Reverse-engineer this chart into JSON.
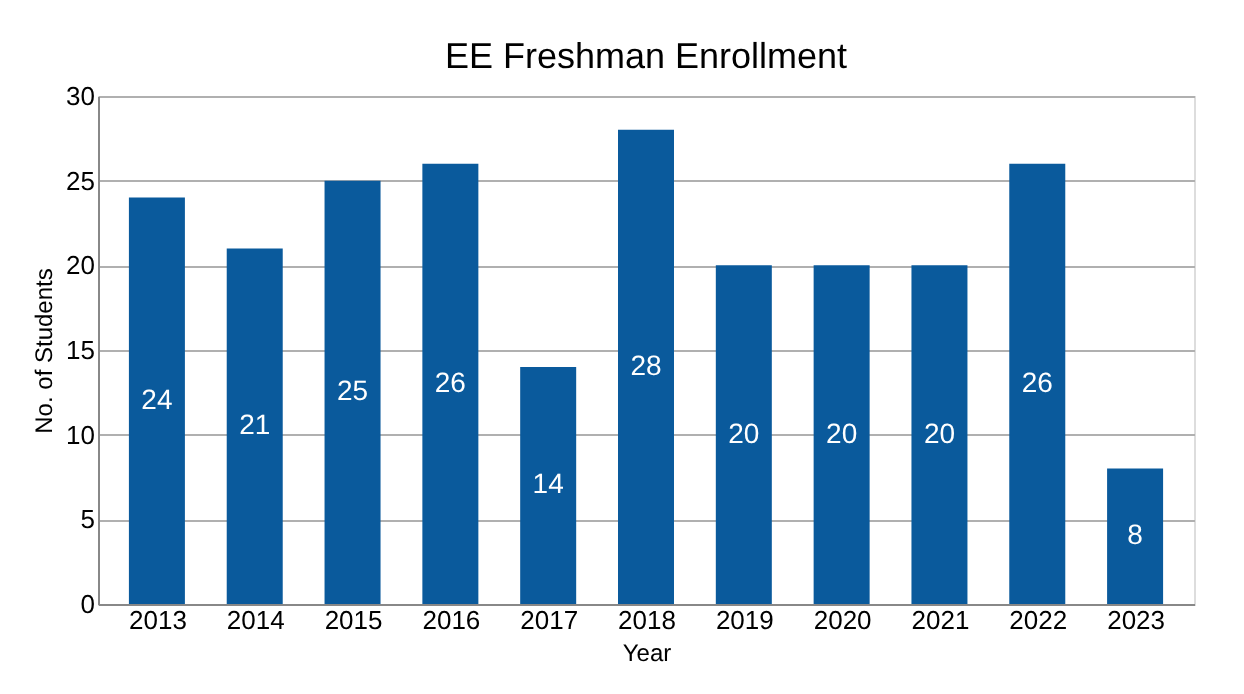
{
  "chart_data": {
    "type": "bar",
    "title": "EE Freshman Enrollment",
    "xlabel": "Year",
    "ylabel": "No. of Students",
    "categories": [
      "2013",
      "2014",
      "2015",
      "2016",
      "2017",
      "2018",
      "2019",
      "2020",
      "2021",
      "2022",
      "2023"
    ],
    "values": [
      24,
      21,
      25,
      26,
      14,
      28,
      20,
      20,
      20,
      26,
      8
    ],
    "color": "#0a5a9c",
    "ylim": [
      0,
      30
    ],
    "yticks": [
      0,
      5,
      10,
      15,
      20,
      25,
      30
    ],
    "grid": "y",
    "data_labels": true
  }
}
